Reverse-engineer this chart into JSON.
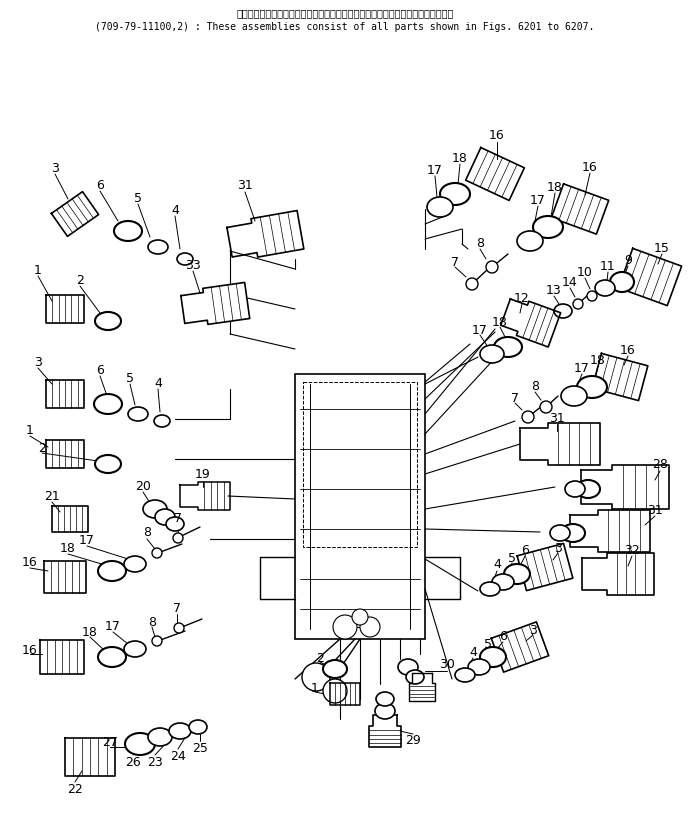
{
  "header_line1": "これらのアセンブリの構成部品は第６２０１図から第６２０７図までで含みます。",
  "header_line2": "(709-79-11100,2) : These assemblies consist of all parts shown in Figs. 6201 to 6207.",
  "bg_color": "#ffffff",
  "line_color": "#000000",
  "text_color": "#000000",
  "header_fontsize": 7.0,
  "label_fontsize": 9.0
}
